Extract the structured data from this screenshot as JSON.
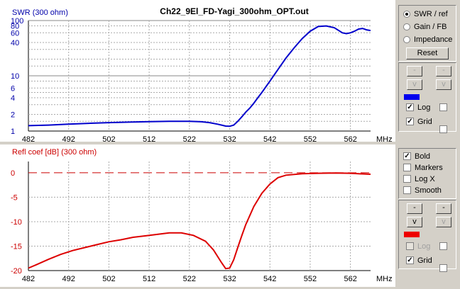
{
  "file_title": "Ch22_9El_FD-Yagi_300ohm_OPT.out",
  "colors": {
    "swr": "#0000cc",
    "refl": "#dd0000",
    "grid": "#999999"
  },
  "swr_chart": {
    "ylabel": "SWR (300 ohm)",
    "xlabel": "MHz",
    "y_ticks": [
      "100",
      "80",
      "60",
      "40",
      "10",
      "6",
      "4",
      "2",
      "1"
    ],
    "x_ticks": [
      "482",
      "492",
      "502",
      "512",
      "522",
      "532",
      "542",
      "552",
      "562"
    ]
  },
  "refl_chart": {
    "ylabel": "Refl coef [dB] (300 ohm)",
    "xlabel": "MHz",
    "y_ticks": [
      "0",
      "-5",
      "-10",
      "-15",
      "-20"
    ],
    "x_ticks": [
      "482",
      "492",
      "502",
      "512",
      "522",
      "532",
      "542",
      "552",
      "562"
    ]
  },
  "chart_data": [
    {
      "type": "line",
      "ylabel": "SWR (300 ohm)",
      "xlabel": "MHz",
      "scale": "log",
      "xlim": [
        482,
        567
      ],
      "ylim": [
        1,
        100
      ],
      "x": [
        482,
        487,
        492,
        497,
        502,
        507,
        512,
        517,
        522,
        525,
        527,
        529,
        530,
        531,
        532,
        533,
        534,
        535,
        536,
        537,
        538,
        539,
        540,
        542,
        544,
        546,
        548,
        550,
        552,
        554,
        556,
        558,
        560,
        561,
        562,
        563,
        564,
        565,
        566,
        567
      ],
      "values": [
        1.25,
        1.28,
        1.33,
        1.38,
        1.42,
        1.45,
        1.48,
        1.5,
        1.5,
        1.47,
        1.42,
        1.33,
        1.28,
        1.23,
        1.22,
        1.28,
        1.5,
        1.8,
        2.2,
        2.6,
        3.2,
        4.0,
        5.0,
        8.0,
        13,
        21,
        32,
        47,
        64,
        78,
        80,
        74,
        60,
        58,
        60,
        64,
        70,
        72,
        68,
        66
      ]
    },
    {
      "type": "line",
      "ylabel": "Refl coef [dB] (300 ohm)",
      "xlabel": "MHz",
      "xlim": [
        482,
        567
      ],
      "ylim": [
        -20,
        2.3
      ],
      "x": [
        482,
        484,
        487,
        490,
        493,
        496,
        499,
        502,
        505,
        508,
        511,
        514,
        517,
        520,
        523,
        526,
        528,
        530,
        531,
        532,
        533,
        534,
        535,
        536,
        538,
        540,
        542,
        544,
        546,
        550,
        554,
        558,
        562,
        564,
        567
      ],
      "values": [
        -19.5,
        -18.8,
        -17.7,
        -16.7,
        -15.9,
        -15.3,
        -14.7,
        -14.1,
        -13.7,
        -13.2,
        -12.9,
        -12.6,
        -12.3,
        -12.3,
        -12.8,
        -14.0,
        -15.8,
        -18.4,
        -19.6,
        -19.5,
        -17.8,
        -15.3,
        -12.9,
        -10.6,
        -6.9,
        -4.2,
        -2.3,
        -1.0,
        -0.5,
        -0.2,
        -0.1,
        -0.05,
        -0.1,
        -0.2,
        -0.3
      ]
    }
  ],
  "panel_top": {
    "radios": [
      {
        "label": "SWR / ref",
        "selected": true
      },
      {
        "label": "Gain / FB",
        "selected": false
      },
      {
        "label": "Impedance",
        "selected": false
      }
    ],
    "reset": "Reset",
    "up_btn": "-",
    "down_btn": "v",
    "log": "Log",
    "grid": "Grid",
    "swatch_color": "#0000ee"
  },
  "panel_bottom_opts": [
    {
      "label": "Bold",
      "checked": true
    },
    {
      "label": "Markers",
      "checked": false
    },
    {
      "label": "Log X",
      "checked": false
    },
    {
      "label": "Smooth",
      "checked": false
    }
  ],
  "panel_bottom": {
    "up_btn": "-",
    "down_btn": "v",
    "log": "Log",
    "grid": "Grid",
    "swatch_color": "#ee0000"
  }
}
